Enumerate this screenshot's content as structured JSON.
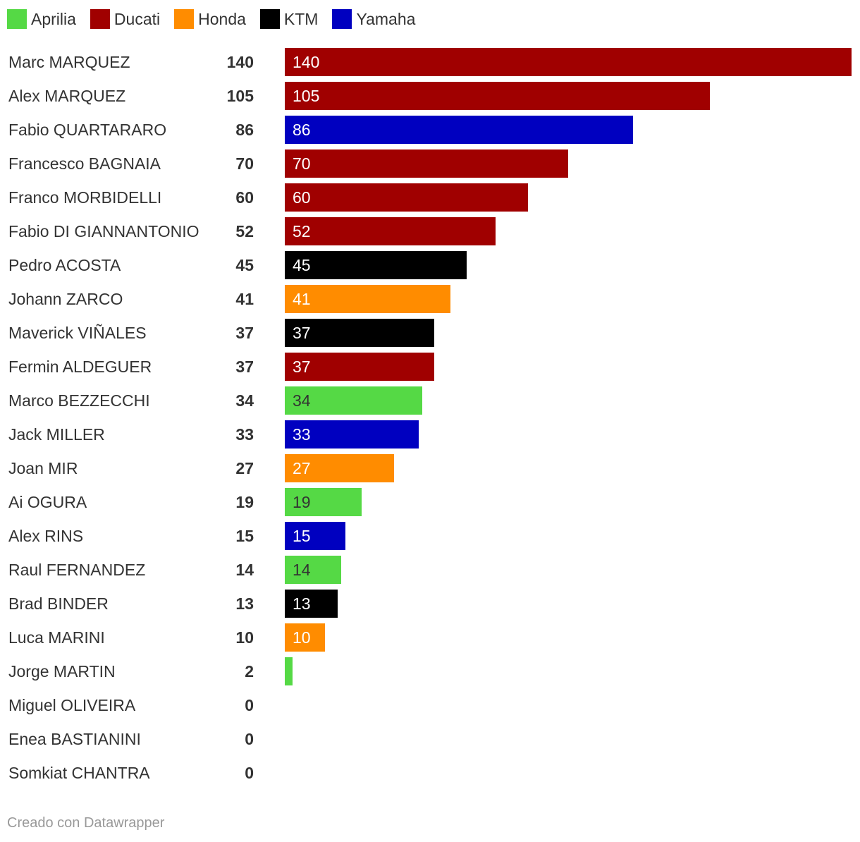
{
  "legend": [
    {
      "label": "Aprilia",
      "color": "#55d945"
    },
    {
      "label": "Ducati",
      "color": "#a00000"
    },
    {
      "label": "Honda",
      "color": "#ff8c00"
    },
    {
      "label": "KTM",
      "color": "#000000"
    },
    {
      "label": "Yamaha",
      "color": "#0000c0"
    }
  ],
  "chart_data": {
    "type": "bar",
    "orientation": "horizontal",
    "xlim": [
      0,
      140
    ],
    "grid": false,
    "legend_position": "top-left",
    "rows": [
      {
        "name": "Marc MARQUEZ",
        "value": 140,
        "team": "Ducati",
        "color": "#a00000",
        "bar_label": "140",
        "label_color": "#ffffff"
      },
      {
        "name": "Alex MARQUEZ",
        "value": 105,
        "team": "Ducati",
        "color": "#a00000",
        "bar_label": "105",
        "label_color": "#ffffff"
      },
      {
        "name": "Fabio QUARTARARO",
        "value": 86,
        "team": "Yamaha",
        "color": "#0000c0",
        "bar_label": "86",
        "label_color": "#ffffff"
      },
      {
        "name": "Francesco BAGNAIA",
        "value": 70,
        "team": "Ducati",
        "color": "#a00000",
        "bar_label": "70",
        "label_color": "#ffffff"
      },
      {
        "name": "Franco MORBIDELLI",
        "value": 60,
        "team": "Ducati",
        "color": "#a00000",
        "bar_label": "60",
        "label_color": "#ffffff"
      },
      {
        "name": "Fabio DI GIANNANTONIO",
        "value": 52,
        "team": "Ducati",
        "color": "#a00000",
        "bar_label": "52",
        "label_color": "#ffffff"
      },
      {
        "name": "Pedro ACOSTA",
        "value": 45,
        "team": "KTM",
        "color": "#000000",
        "bar_label": "45",
        "label_color": "#ffffff"
      },
      {
        "name": "Johann ZARCO",
        "value": 41,
        "team": "Honda",
        "color": "#ff8c00",
        "bar_label": "41",
        "label_color": "#ffffff"
      },
      {
        "name": "Maverick VIÑALES",
        "value": 37,
        "team": "KTM",
        "color": "#000000",
        "bar_label": "37",
        "label_color": "#ffffff"
      },
      {
        "name": "Fermin ALDEGUER",
        "value": 37,
        "team": "Ducati",
        "color": "#a00000",
        "bar_label": "37",
        "label_color": "#ffffff"
      },
      {
        "name": "Marco BEZZECCHI",
        "value": 34,
        "team": "Aprilia",
        "color": "#55d945",
        "bar_label": "34",
        "label_color": "#333333"
      },
      {
        "name": "Jack MILLER",
        "value": 33,
        "team": "Yamaha",
        "color": "#0000c0",
        "bar_label": "33",
        "label_color": "#ffffff"
      },
      {
        "name": "Joan MIR",
        "value": 27,
        "team": "Honda",
        "color": "#ff8c00",
        "bar_label": "27",
        "label_color": "#ffffff"
      },
      {
        "name": "Ai OGURA",
        "value": 19,
        "team": "Aprilia",
        "color": "#55d945",
        "bar_label": "19",
        "label_color": "#333333"
      },
      {
        "name": "Alex RINS",
        "value": 15,
        "team": "Yamaha",
        "color": "#0000c0",
        "bar_label": "15",
        "label_color": "#ffffff"
      },
      {
        "name": "Raul FERNANDEZ",
        "value": 14,
        "team": "Aprilia",
        "color": "#55d945",
        "bar_label": "14",
        "label_color": "#333333"
      },
      {
        "name": "Brad BINDER",
        "value": 13,
        "team": "KTM",
        "color": "#000000",
        "bar_label": "13",
        "label_color": "#ffffff"
      },
      {
        "name": "Luca MARINI",
        "value": 10,
        "team": "Honda",
        "color": "#ff8c00",
        "bar_label": "10",
        "label_color": "#ffffff"
      },
      {
        "name": "Jorge MARTIN",
        "value": 2,
        "team": "Aprilia",
        "color": "#55d945",
        "bar_label": "",
        "label_color": "#333333"
      },
      {
        "name": "Miguel OLIVEIRA",
        "value": 0,
        "team": "",
        "color": "#cccccc",
        "bar_label": "",
        "label_color": "#333333"
      },
      {
        "name": "Enea BASTIANINI",
        "value": 0,
        "team": "",
        "color": "#cccccc",
        "bar_label": "",
        "label_color": "#333333"
      },
      {
        "name": "Somkiat CHANTRA",
        "value": 0,
        "team": "",
        "color": "#cccccc",
        "bar_label": "",
        "label_color": "#333333"
      }
    ]
  },
  "footer": {
    "credit": "Creado con Datawrapper"
  }
}
